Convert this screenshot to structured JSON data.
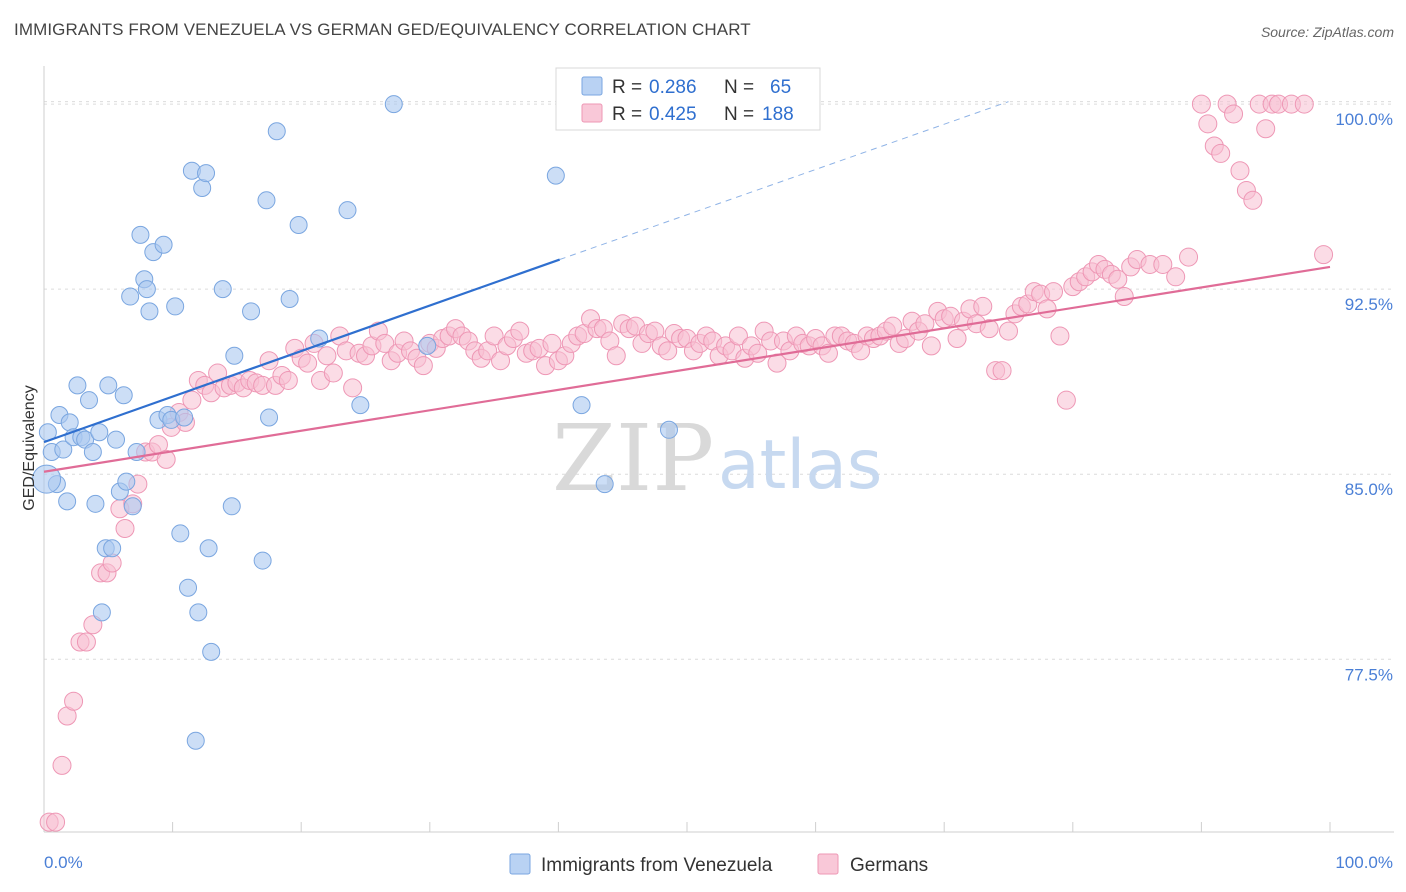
{
  "title": "IMMIGRANTS FROM VENEZUELA VS GERMAN GED/EQUIVALENCY CORRELATION CHART",
  "source": "Source: ZipAtlas.com",
  "watermark": {
    "zip": "ZIP",
    "atlas": "atlas"
  },
  "legend": {
    "r_label": "R = ",
    "n_label": "N = ",
    "rows": [
      {
        "r": "0.286",
        "n": "65",
        "color": "#8db5ea"
      },
      {
        "r": "0.425",
        "n": "188",
        "color": "#f4a6c0"
      }
    ]
  },
  "colors": {
    "series1_fill": "#aac8f0",
    "series1_stroke": "#7aa6e0",
    "series1_line": "#2f6fcf",
    "series2_fill": "#f7bfd2",
    "series2_stroke": "#ee97b5",
    "series2_line": "#e06c97",
    "grid": "#dcdcdc",
    "tick_text": "#4a7fd6"
  },
  "chart_data": {
    "type": "scatter",
    "title": "IMMIGRANTS FROM VENEZUELA VS GERMAN GED/EQUIVALENCY CORRELATION CHART",
    "xlabel": "",
    "ylabel": "GED/Equivalency",
    "xlim": [
      0,
      100
    ],
    "ylim": [
      70.5,
      101.3
    ],
    "x_tick_labels": [
      "0.0%",
      "100.0%"
    ],
    "y_ticks": [
      77.5,
      85.0,
      92.5,
      100.0
    ],
    "y_tick_labels": [
      "77.5%",
      "85.0%",
      "92.5%",
      "100.0%"
    ],
    "grid": true,
    "legend_position": "bottom",
    "series": [
      {
        "name": "Immigrants from Venezuela",
        "R": 0.286,
        "N": 65,
        "trend": {
          "x0": 0,
          "y0": 86.3,
          "x1": 40.1,
          "y1": 93.7,
          "dashed_to_x": 75,
          "dashed_to_y": 100.1
        },
        "points": [
          [
            0.3,
            86.7
          ],
          [
            0.6,
            85.9
          ],
          [
            1.0,
            84.6
          ],
          [
            1.2,
            87.4
          ],
          [
            1.5,
            86.0
          ],
          [
            1.8,
            83.9
          ],
          [
            2.0,
            87.1
          ],
          [
            2.3,
            86.5
          ],
          [
            2.6,
            88.6
          ],
          [
            2.9,
            86.5
          ],
          [
            3.2,
            86.4
          ],
          [
            3.5,
            88.0
          ],
          [
            3.8,
            85.9
          ],
          [
            4.0,
            83.8
          ],
          [
            4.3,
            86.7
          ],
          [
            4.5,
            79.4
          ],
          [
            4.8,
            82.0
          ],
          [
            5.0,
            88.6
          ],
          [
            5.3,
            82.0
          ],
          [
            5.6,
            86.4
          ],
          [
            5.9,
            84.3
          ],
          [
            6.2,
            88.2
          ],
          [
            6.4,
            84.7
          ],
          [
            6.7,
            92.2
          ],
          [
            6.9,
            83.7
          ],
          [
            7.2,
            85.9
          ],
          [
            7.5,
            94.7
          ],
          [
            7.8,
            92.9
          ],
          [
            8.0,
            92.5
          ],
          [
            8.2,
            91.6
          ],
          [
            8.5,
            94.0
          ],
          [
            8.9,
            87.2
          ],
          [
            9.3,
            94.3
          ],
          [
            9.6,
            87.4
          ],
          [
            9.9,
            87.2
          ],
          [
            10.2,
            91.8
          ],
          [
            10.6,
            82.6
          ],
          [
            10.9,
            87.3
          ],
          [
            11.2,
            80.4
          ],
          [
            11.5,
            97.3
          ],
          [
            11.8,
            74.2
          ],
          [
            12.0,
            79.4
          ],
          [
            12.3,
            96.6
          ],
          [
            12.6,
            97.2
          ],
          [
            12.8,
            82.0
          ],
          [
            13.0,
            77.8
          ],
          [
            13.9,
            92.5
          ],
          [
            14.6,
            83.7
          ],
          [
            14.8,
            89.8
          ],
          [
            16.1,
            91.6
          ],
          [
            17.0,
            81.5
          ],
          [
            17.3,
            96.1
          ],
          [
            17.5,
            87.3
          ],
          [
            18.1,
            98.9
          ],
          [
            19.1,
            92.1
          ],
          [
            19.8,
            95.1
          ],
          [
            21.4,
            90.5
          ],
          [
            23.6,
            95.7
          ],
          [
            24.6,
            87.8
          ],
          [
            27.2,
            100.0
          ],
          [
            29.8,
            90.2
          ],
          [
            39.8,
            97.1
          ],
          [
            43.6,
            84.6
          ],
          [
            41.8,
            87.8
          ],
          [
            48.6,
            86.8
          ]
        ]
      },
      {
        "name": "Germans",
        "R": 0.425,
        "N": 188,
        "trend": {
          "x0": 0,
          "y0": 85.1,
          "x1": 100,
          "y1": 93.4
        },
        "points": [
          [
            0.4,
            70.9
          ],
          [
            0.9,
            70.9
          ],
          [
            1.4,
            73.2
          ],
          [
            1.8,
            75.2
          ],
          [
            2.3,
            75.8
          ],
          [
            2.8,
            78.2
          ],
          [
            3.3,
            78.2
          ],
          [
            3.8,
            78.9
          ],
          [
            4.4,
            81.0
          ],
          [
            4.9,
            81.0
          ],
          [
            5.3,
            81.4
          ],
          [
            5.9,
            83.6
          ],
          [
            6.3,
            82.8
          ],
          [
            6.9,
            83.8
          ],
          [
            7.3,
            84.6
          ],
          [
            7.9,
            85.9
          ],
          [
            8.4,
            85.9
          ],
          [
            8.9,
            86.2
          ],
          [
            9.5,
            85.6
          ],
          [
            9.9,
            86.9
          ],
          [
            10.5,
            87.5
          ],
          [
            11.0,
            87.1
          ],
          [
            11.5,
            88.0
          ],
          [
            12.0,
            88.8
          ],
          [
            12.5,
            88.6
          ],
          [
            13.0,
            88.3
          ],
          [
            13.5,
            89.1
          ],
          [
            14.0,
            88.5
          ],
          [
            14.5,
            88.6
          ],
          [
            15.0,
            88.7
          ],
          [
            15.5,
            88.5
          ],
          [
            16.0,
            88.8
          ],
          [
            16.5,
            88.7
          ],
          [
            17.0,
            88.6
          ],
          [
            17.5,
            89.6
          ],
          [
            18.0,
            88.6
          ],
          [
            18.5,
            89.0
          ],
          [
            19.0,
            88.8
          ],
          [
            19.5,
            90.1
          ],
          [
            20.0,
            89.7
          ],
          [
            20.5,
            89.5
          ],
          [
            21.0,
            90.3
          ],
          [
            21.5,
            88.8
          ],
          [
            22.0,
            89.8
          ],
          [
            22.5,
            89.1
          ],
          [
            23.0,
            90.6
          ],
          [
            23.5,
            90.0
          ],
          [
            24.0,
            88.5
          ],
          [
            24.5,
            89.9
          ],
          [
            25.0,
            89.8
          ],
          [
            25.5,
            90.2
          ],
          [
            26.0,
            90.8
          ],
          [
            26.5,
            90.3
          ],
          [
            27.0,
            89.6
          ],
          [
            27.5,
            89.9
          ],
          [
            28.0,
            90.4
          ],
          [
            28.5,
            90.0
          ],
          [
            29.0,
            89.7
          ],
          [
            29.5,
            89.4
          ],
          [
            30.0,
            90.3
          ],
          [
            30.5,
            90.1
          ],
          [
            31.0,
            90.5
          ],
          [
            31.5,
            90.6
          ],
          [
            32.0,
            90.9
          ],
          [
            32.5,
            90.6
          ],
          [
            33.0,
            90.4
          ],
          [
            33.5,
            90.0
          ],
          [
            34.0,
            89.7
          ],
          [
            34.5,
            90.0
          ],
          [
            35.0,
            90.6
          ],
          [
            35.5,
            89.6
          ],
          [
            36.0,
            90.2
          ],
          [
            36.5,
            90.5
          ],
          [
            37.0,
            90.8
          ],
          [
            37.5,
            89.9
          ],
          [
            38.0,
            90.0
          ],
          [
            38.5,
            90.1
          ],
          [
            39.0,
            89.4
          ],
          [
            39.5,
            90.3
          ],
          [
            40.0,
            89.6
          ],
          [
            40.5,
            89.8
          ],
          [
            41.0,
            90.3
          ],
          [
            41.5,
            90.6
          ],
          [
            42.0,
            90.7
          ],
          [
            42.5,
            91.3
          ],
          [
            43.0,
            90.9
          ],
          [
            43.5,
            90.9
          ],
          [
            44.0,
            90.4
          ],
          [
            44.5,
            89.8
          ],
          [
            45.0,
            91.1
          ],
          [
            45.5,
            90.9
          ],
          [
            46.0,
            91.0
          ],
          [
            46.5,
            90.3
          ],
          [
            47.0,
            90.7
          ],
          [
            47.5,
            90.8
          ],
          [
            48.0,
            90.2
          ],
          [
            48.5,
            90.0
          ],
          [
            49.0,
            90.7
          ],
          [
            49.5,
            90.5
          ],
          [
            50.0,
            90.5
          ],
          [
            50.5,
            90.0
          ],
          [
            51.0,
            90.3
          ],
          [
            51.5,
            90.6
          ],
          [
            52.0,
            90.4
          ],
          [
            52.5,
            89.8
          ],
          [
            53.0,
            90.2
          ],
          [
            53.5,
            90.0
          ],
          [
            54.0,
            90.6
          ],
          [
            54.5,
            89.7
          ],
          [
            55.0,
            90.2
          ],
          [
            55.5,
            89.9
          ],
          [
            56.0,
            90.8
          ],
          [
            56.5,
            90.4
          ],
          [
            57.0,
            89.5
          ],
          [
            57.5,
            90.4
          ],
          [
            58.0,
            90.0
          ],
          [
            58.5,
            90.6
          ],
          [
            59.0,
            90.3
          ],
          [
            59.5,
            90.2
          ],
          [
            60.0,
            90.5
          ],
          [
            60.5,
            90.2
          ],
          [
            61.0,
            89.9
          ],
          [
            61.5,
            90.6
          ],
          [
            62.0,
            90.6
          ],
          [
            62.5,
            90.4
          ],
          [
            63.0,
            90.3
          ],
          [
            63.5,
            90.0
          ],
          [
            64.0,
            90.6
          ],
          [
            64.5,
            90.5
          ],
          [
            65.0,
            90.6
          ],
          [
            65.5,
            90.8
          ],
          [
            66.0,
            91.0
          ],
          [
            66.5,
            90.3
          ],
          [
            67.0,
            90.5
          ],
          [
            67.5,
            91.2
          ],
          [
            68.0,
            90.8
          ],
          [
            68.5,
            91.1
          ],
          [
            69.0,
            90.2
          ],
          [
            69.5,
            91.6
          ],
          [
            70.0,
            91.3
          ],
          [
            70.5,
            91.4
          ],
          [
            71.0,
            90.5
          ],
          [
            71.5,
            91.2
          ],
          [
            72.0,
            91.7
          ],
          [
            72.5,
            91.1
          ],
          [
            73.0,
            91.8
          ],
          [
            73.5,
            90.9
          ],
          [
            74.0,
            89.2
          ],
          [
            74.5,
            89.2
          ],
          [
            75.0,
            90.8
          ],
          [
            75.5,
            91.5
          ],
          [
            76.0,
            91.8
          ],
          [
            76.5,
            91.9
          ],
          [
            77.0,
            92.4
          ],
          [
            77.5,
            92.3
          ],
          [
            78.0,
            91.7
          ],
          [
            78.5,
            92.4
          ],
          [
            79.0,
            90.6
          ],
          [
            79.5,
            88.0
          ],
          [
            80.0,
            92.6
          ],
          [
            80.5,
            92.8
          ],
          [
            81.0,
            93.0
          ],
          [
            81.5,
            93.2
          ],
          [
            82.0,
            93.5
          ],
          [
            82.5,
            93.3
          ],
          [
            83.0,
            93.1
          ],
          [
            83.5,
            92.9
          ],
          [
            84.0,
            92.2
          ],
          [
            84.5,
            93.4
          ],
          [
            85.0,
            93.7
          ],
          [
            86.0,
            93.5
          ],
          [
            87.0,
            93.5
          ],
          [
            88.0,
            93.0
          ],
          [
            89.0,
            93.8
          ],
          [
            90.0,
            100.0
          ],
          [
            90.5,
            99.2
          ],
          [
            91.0,
            98.3
          ],
          [
            91.5,
            98.0
          ],
          [
            92.0,
            100.0
          ],
          [
            92.5,
            99.6
          ],
          [
            93.0,
            97.3
          ],
          [
            93.5,
            96.5
          ],
          [
            94.0,
            96.1
          ],
          [
            94.5,
            100.0
          ],
          [
            95.0,
            99.0
          ],
          [
            95.5,
            100.0
          ],
          [
            96.0,
            100.0
          ],
          [
            97.0,
            100.0
          ],
          [
            98.0,
            100.0
          ],
          [
            99.5,
            93.9
          ]
        ]
      }
    ]
  },
  "bottom_legend": [
    {
      "label": "Immigrants from Venezuela"
    },
    {
      "label": "Germans"
    }
  ]
}
